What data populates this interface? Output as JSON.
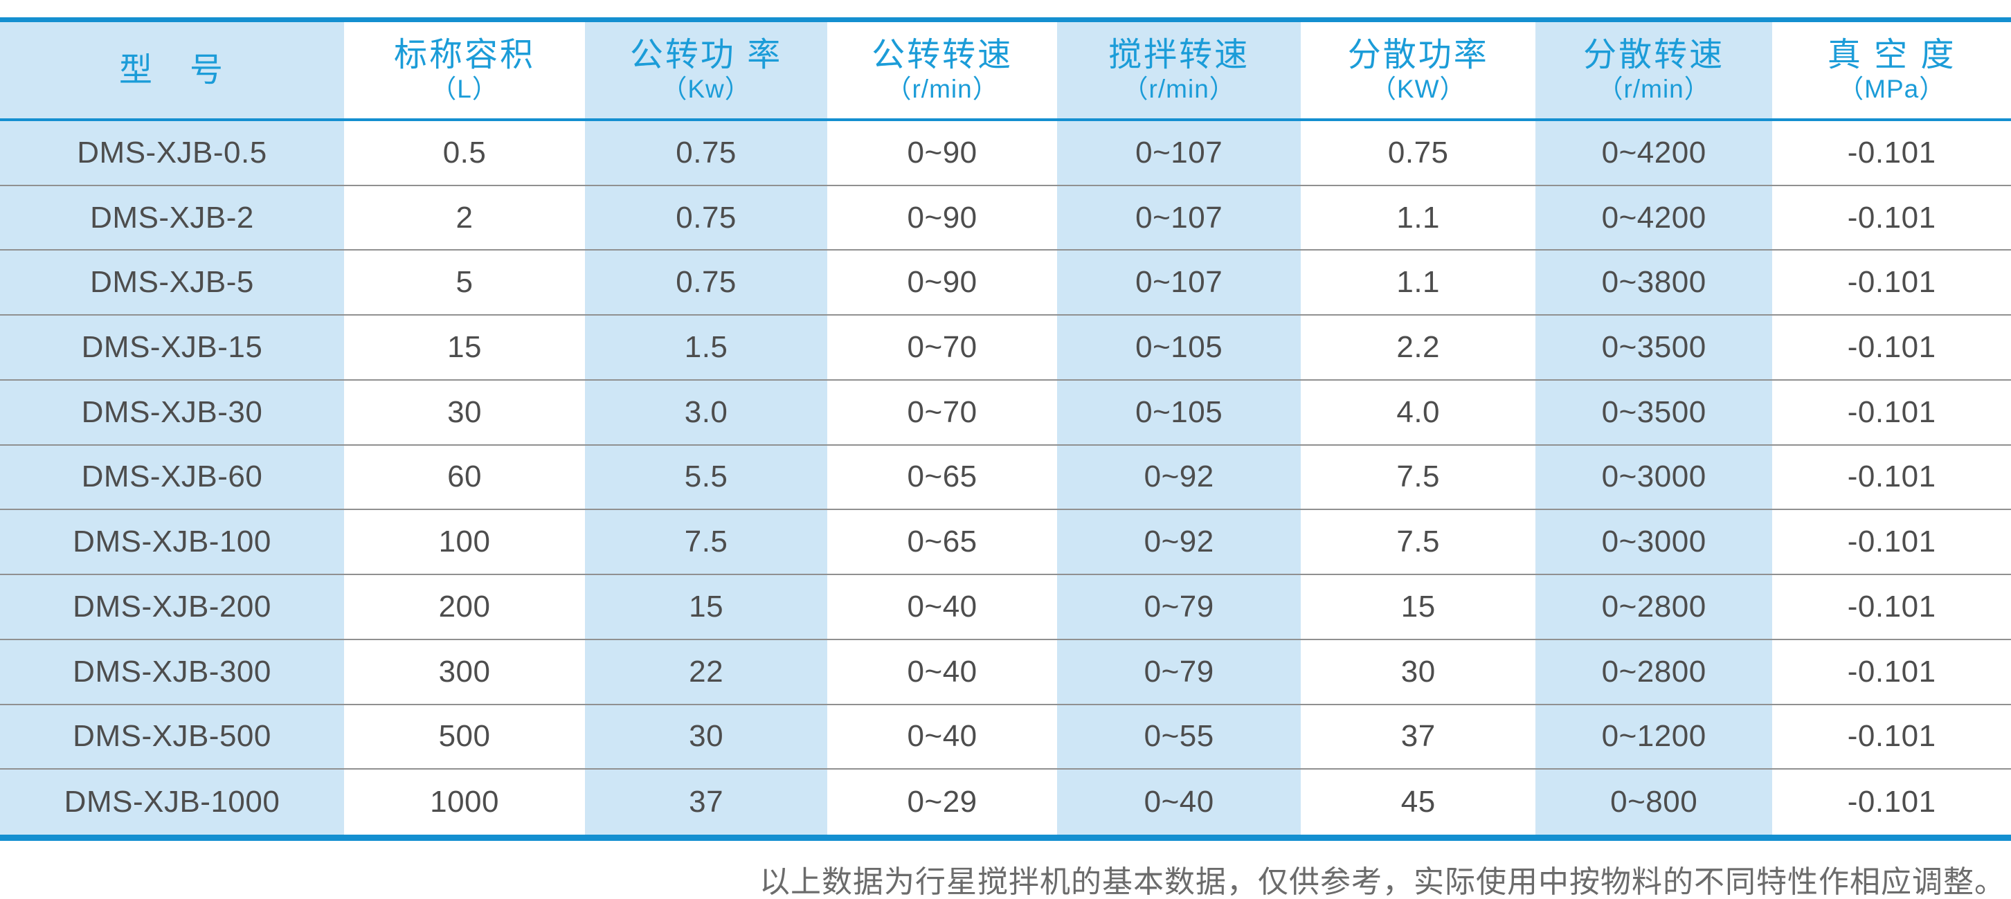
{
  "colors": {
    "accent_blue_line": "#148fd0",
    "header_text_blue": "#1b9cd8",
    "stripe_light_blue": "#cee6f6",
    "row_separator_gray": "#909090",
    "cell_text_gray": "#4d4d4d",
    "note_text_gray": "#6b6b6b"
  },
  "table": {
    "columns": [
      {
        "label": "型　号",
        "unit": ""
      },
      {
        "label": "标称容积",
        "unit": "（L）"
      },
      {
        "label": "公转功 率",
        "unit": "（Kw）"
      },
      {
        "label": "公转转速",
        "unit": "（r/min）"
      },
      {
        "label": "搅拌转速",
        "unit": "（r/min）"
      },
      {
        "label": "分散功率",
        "unit": "（KW）"
      },
      {
        "label": "分散转速",
        "unit": "（r/min）"
      },
      {
        "label": "真 空 度",
        "unit": "（MPa）"
      }
    ],
    "rows": [
      {
        "cells": [
          "DMS-XJB-0.5",
          "0.5",
          "0.75",
          "0~90",
          "0~107",
          "0.75",
          "0~4200",
          "-0.101"
        ]
      },
      {
        "cells": [
          "DMS-XJB-2",
          "2",
          "0.75",
          "0~90",
          "0~107",
          "1.1",
          "0~4200",
          "-0.101"
        ]
      },
      {
        "cells": [
          "DMS-XJB-5",
          "5",
          "0.75",
          "0~90",
          "0~107",
          "1.1",
          "0~3800",
          "-0.101"
        ]
      },
      {
        "cells": [
          "DMS-XJB-15",
          "15",
          "1.5",
          "0~70",
          "0~105",
          "2.2",
          "0~3500",
          "-0.101"
        ]
      },
      {
        "cells": [
          "DMS-XJB-30",
          "30",
          "3.0",
          "0~70",
          "0~105",
          "4.0",
          "0~3500",
          "-0.101"
        ]
      },
      {
        "cells": [
          "DMS-XJB-60",
          "60",
          "5.5",
          "0~65",
          "0~92",
          "7.5",
          "0~3000",
          "-0.101"
        ]
      },
      {
        "cells": [
          "DMS-XJB-100",
          "100",
          "7.5",
          "0~65",
          "0~92",
          "7.5",
          "0~3000",
          "-0.101"
        ]
      },
      {
        "cells": [
          "DMS-XJB-200",
          "200",
          "15",
          "0~40",
          "0~79",
          "15",
          "0~2800",
          "-0.101"
        ]
      },
      {
        "cells": [
          "DMS-XJB-300",
          "300",
          "22",
          "0~40",
          "0~79",
          "30",
          "0~2800",
          "-0.101"
        ]
      },
      {
        "cells": [
          "DMS-XJB-500",
          "500",
          "30",
          "0~40",
          "0~55",
          "37",
          "0~1200",
          "-0.101"
        ]
      },
      {
        "cells": [
          "DMS-XJB-1000",
          "1000",
          "37",
          "0~29",
          "0~40",
          "45",
          "0~800",
          "-0.101"
        ]
      }
    ]
  },
  "footer": {
    "note": "以上数据为行星搅拌机的基本数据，仅供参考，实际使用中按物料的不同特性作相应调整。"
  }
}
